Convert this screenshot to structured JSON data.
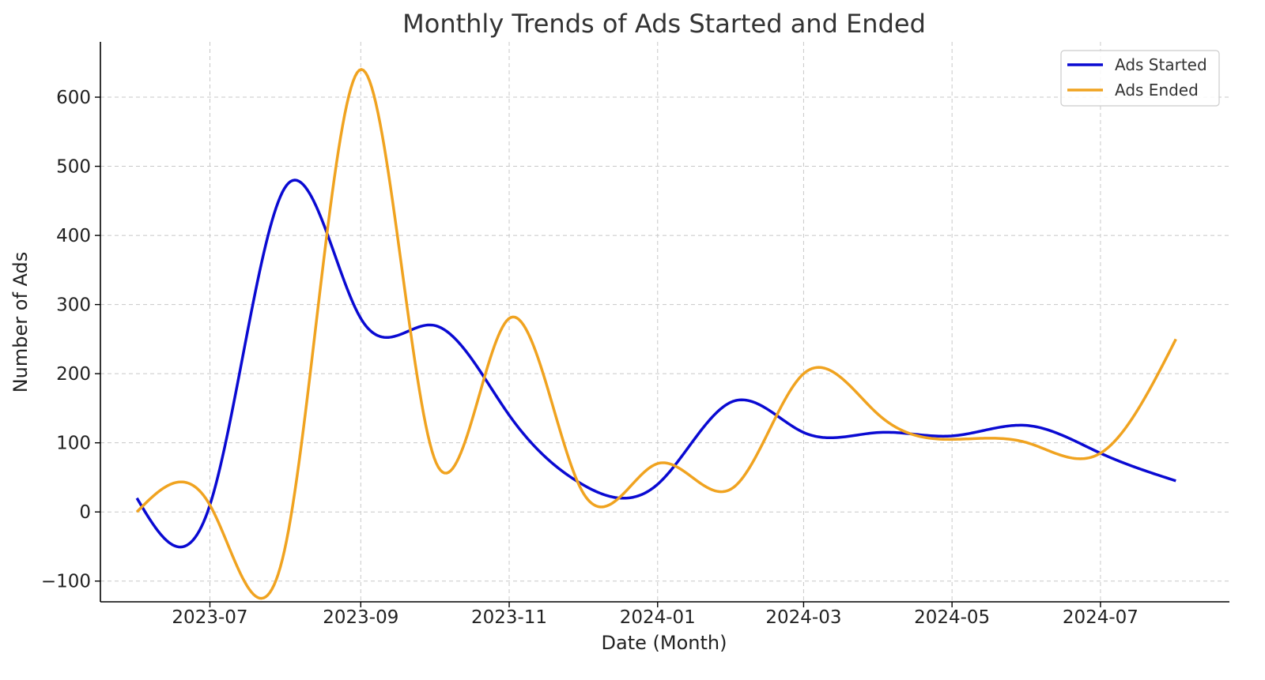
{
  "chart_data": {
    "type": "line",
    "title": "Monthly Trends of Ads Started and Ended",
    "xlabel": "Date (Month)",
    "ylabel": "Number of Ads",
    "x": [
      "2023-06",
      "2023-07",
      "2023-08",
      "2023-09",
      "2023-10",
      "2023-11",
      "2023-12",
      "2024-01",
      "2024-02",
      "2024-03",
      "2024-04",
      "2024-05",
      "2024-06",
      "2024-07",
      "2024-08"
    ],
    "x_ticks": [
      "2023-07",
      "2023-09",
      "2023-11",
      "2024-01",
      "2024-03",
      "2024-05",
      "2024-07"
    ],
    "y_ticks": [
      -100,
      0,
      100,
      200,
      300,
      400,
      500,
      600
    ],
    "y_tick_labels": [
      "−100",
      "0",
      "100",
      "200",
      "300",
      "400",
      "500",
      "600"
    ],
    "xlim": [
      "2023-05-17",
      "2024-08-23"
    ],
    "ylim": [
      -130,
      680
    ],
    "grid": true,
    "legend_position": "top-right",
    "smoothing": "cubic-spline",
    "series": [
      {
        "name": "Ads Started",
        "color": "#0a0ad2",
        "values": [
          20,
          10,
          470,
          280,
          270,
          140,
          40,
          40,
          160,
          115,
          115,
          110,
          125,
          85,
          45
        ]
      },
      {
        "name": "Ads Ended",
        "color": "#f0a320",
        "values": [
          0,
          10,
          -50,
          640,
          80,
          280,
          30,
          70,
          35,
          200,
          140,
          105,
          100,
          85,
          250
        ]
      }
    ]
  }
}
